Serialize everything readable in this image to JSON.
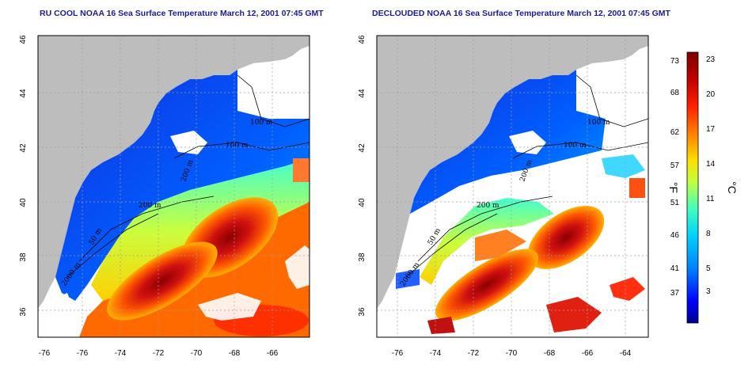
{
  "panels": [
    {
      "title": "RU COOL NOAA 16 Sea Surface Temperature March 12, 2001 07:45 GMT",
      "contour_labels": [
        "100 m",
        "100 m",
        "200 m",
        "200 m",
        "50 m",
        "2000 m"
      ]
    },
    {
      "title": "DECLOUDED NOAA 16 Sea Surface Temperature March 12, 2001 07:45 GMT",
      "contour_labels": [
        "100 m",
        "100 m",
        "200 m",
        "200 m",
        "50 m",
        "2000 m"
      ]
    }
  ],
  "axes": {
    "lat_ticks": [
      "36",
      "38",
      "40",
      "42",
      "44",
      "46"
    ],
    "lon_ticks": [
      "-76",
      "-74",
      "-72",
      "-70",
      "-68",
      "-66",
      "-64"
    ]
  },
  "colorbar": {
    "fahrenheit_ticks": [
      "73",
      "68",
      "62",
      "57",
      "51",
      "46",
      "41",
      "37"
    ],
    "celsius_ticks": [
      "23",
      "20",
      "17",
      "14",
      "11",
      "8",
      "5",
      "3"
    ],
    "fahrenheit_unit": "°F",
    "celsius_unit": "°C",
    "colors": [
      "#00008b",
      "#0000ff",
      "#0080ff",
      "#00d0ff",
      "#40ffc0",
      "#c0ff40",
      "#ffe000",
      "#ff8000",
      "#ff2000",
      "#c00000",
      "#800000"
    ]
  },
  "colors": {
    "land": "#bdbdbd",
    "title": "#1a1a9c"
  }
}
